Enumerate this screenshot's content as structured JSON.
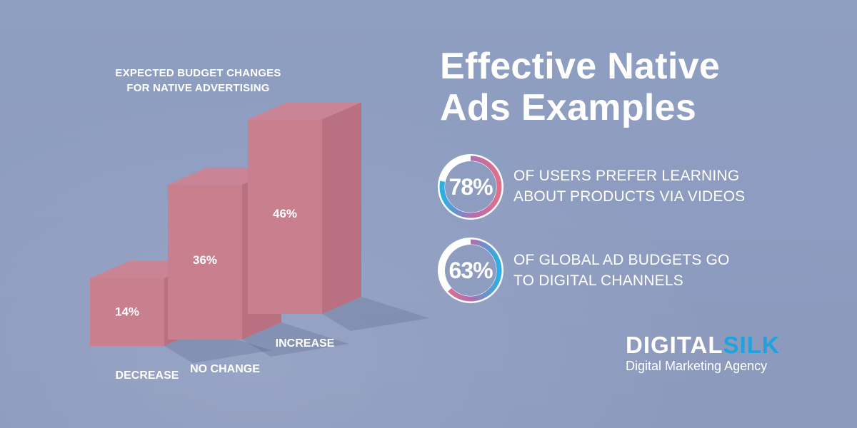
{
  "chart_data": {
    "type": "bar",
    "title": "EXPECTED BUDGET CHANGES FOR NATIVE ADVERTISING",
    "title_lines": [
      "EXPECTED BUDGET CHANGES",
      "FOR NATIVE ADVERTISING"
    ],
    "categories": [
      "DECREASE",
      "NO CHANGE",
      "INCREASE"
    ],
    "values": [
      14,
      36,
      46
    ],
    "value_labels": [
      "14%",
      "36%",
      "46%"
    ],
    "unit": "%",
    "ylim": [
      0,
      46
    ],
    "style": "3d-blocks",
    "color": "#c8808f"
  },
  "headline": {
    "line1": "Effective Native",
    "line2": "Ads Examples"
  },
  "stats": [
    {
      "value_label": "78%",
      "value": 78,
      "line1": "OF USERS PREFER LEARNING",
      "line2": "ABOUT PRODUCTS VIA VIDEOS"
    },
    {
      "value_label": "63%",
      "value": 63,
      "line1": "OF GLOBAL AD BUDGETS GO",
      "line2": "TO DIGITAL CHANNELS"
    }
  ],
  "brand": {
    "word_part1": "DIGITAL",
    "word_part2": "SILK",
    "tagline": "Digital Marketing Agency",
    "accent_color": "#1fa2de",
    "ring_gradient": [
      "#2ab0e4",
      "#c06ba8",
      "#e0708a"
    ]
  }
}
